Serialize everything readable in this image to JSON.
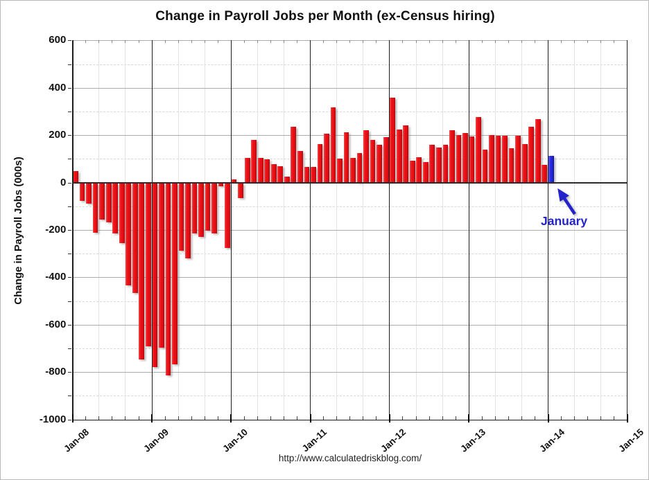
{
  "page": {
    "title": "Change in Payroll Jobs per Month (ex-Census hiring)",
    "y_axis_title": "Change in Payroll Jobs (000s)",
    "footer_url": "http://www.calculatedriskblog.com/",
    "annotation_label": "January"
  },
  "colors": {
    "bar_red": "#e8111a",
    "bar_blue": "#2323d6",
    "annotation_blue": "#2323cc",
    "gridline_major": "#ababab",
    "gridline_minor": "#d8d8d8",
    "axis_black": "#1a1a1a"
  },
  "chart_data": {
    "type": "bar",
    "title": "Change in Payroll Jobs per Month (ex-Census hiring)",
    "xlabel": "",
    "ylabel": "Change in Payroll Jobs (000s)",
    "ylim": [
      -1000,
      600
    ],
    "ytick_labeled_step": 200,
    "yticklabels": [
      "600",
      "400",
      "200",
      "0",
      "-200",
      "-400",
      "-600",
      "-800",
      "-1000"
    ],
    "xticklabels": [
      "Jan-08",
      "Jan-09",
      "Jan-10",
      "Jan-11",
      "Jan-12",
      "Jan-13",
      "Jan-14",
      "Jan-15"
    ],
    "grid": "on",
    "legend_position": "none",
    "annotation": {
      "text": "January",
      "points_to": "Jan-14"
    },
    "highlight_index": 72,
    "categories": [
      "Jan-08",
      "Feb-08",
      "Mar-08",
      "Apr-08",
      "May-08",
      "Jun-08",
      "Jul-08",
      "Aug-08",
      "Sep-08",
      "Oct-08",
      "Nov-08",
      "Dec-08",
      "Jan-09",
      "Feb-09",
      "Mar-09",
      "Apr-09",
      "May-09",
      "Jun-09",
      "Jul-09",
      "Aug-09",
      "Sep-09",
      "Oct-09",
      "Nov-09",
      "Dec-09",
      "Jan-10",
      "Feb-10",
      "Mar-10",
      "Apr-10",
      "May-10",
      "Jun-10",
      "Jul-10",
      "Aug-10",
      "Sep-10",
      "Oct-10",
      "Nov-10",
      "Dec-10",
      "Jan-11",
      "Feb-11",
      "Mar-11",
      "Apr-11",
      "May-11",
      "Jun-11",
      "Jul-11",
      "Aug-11",
      "Sep-11",
      "Oct-11",
      "Nov-11",
      "Dec-11",
      "Jan-12",
      "Feb-12",
      "Mar-12",
      "Apr-12",
      "May-12",
      "Jun-12",
      "Jul-12",
      "Aug-12",
      "Sep-12",
      "Oct-12",
      "Nov-12",
      "Dec-12",
      "Jan-13",
      "Feb-13",
      "Mar-13",
      "Apr-13",
      "May-13",
      "Jun-13",
      "Jul-13",
      "Aug-13",
      "Sep-13",
      "Oct-13",
      "Nov-13",
      "Dec-13",
      "Jan-14"
    ],
    "values": [
      48,
      -75,
      -87,
      -208,
      -152,
      -164,
      -210,
      -252,
      -430,
      -462,
      -745,
      -688,
      -775,
      -695,
      -812,
      -765,
      -285,
      -317,
      -212,
      -225,
      -200,
      -212,
      -14,
      -273,
      14,
      -62,
      105,
      179,
      105,
      99,
      77,
      69,
      25,
      235,
      132,
      67,
      67,
      161,
      206,
      316,
      101,
      211,
      103,
      125,
      220,
      180,
      158,
      192,
      358,
      225,
      240,
      93,
      108,
      87,
      158,
      147,
      158,
      222,
      200,
      210,
      194,
      275,
      138,
      199,
      197,
      198,
      146,
      198,
      163,
      235,
      268,
      74,
      113
    ]
  }
}
